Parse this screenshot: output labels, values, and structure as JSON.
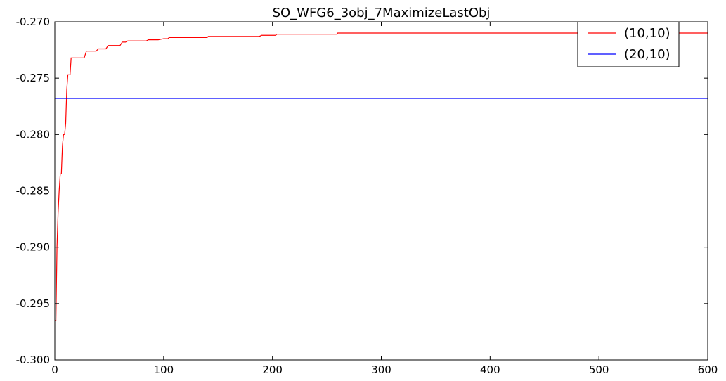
{
  "chart_data": {
    "type": "line",
    "title": "SO_WFG6_3obj_7MaximizeLastObj",
    "xlabel": "",
    "ylabel": "",
    "xlim": [
      0,
      600
    ],
    "ylim": [
      -0.3,
      -0.27
    ],
    "x_ticks": [
      "0",
      "100",
      "200",
      "300",
      "400",
      "500",
      "600"
    ],
    "y_ticks": [
      "-0.270",
      "-0.275",
      "-0.280",
      "-0.285",
      "-0.290",
      "-0.295",
      "-0.300"
    ],
    "grid": false,
    "legend_position": "top-right",
    "series": [
      {
        "name": "(10,10)",
        "color": "#ff0000",
        "points": [
          [
            0,
            -0.2965
          ],
          [
            1,
            -0.2965
          ],
          [
            2,
            -0.29
          ],
          [
            3,
            -0.287
          ],
          [
            4,
            -0.285
          ],
          [
            5,
            -0.2835
          ],
          [
            6,
            -0.2835
          ],
          [
            7,
            -0.281
          ],
          [
            8,
            -0.28
          ],
          [
            9,
            -0.28
          ],
          [
            10,
            -0.279
          ],
          [
            11,
            -0.276
          ],
          [
            12,
            -0.2747
          ],
          [
            13,
            -0.2747
          ],
          [
            14,
            -0.2747
          ],
          [
            15,
            -0.2732
          ],
          [
            20,
            -0.2732
          ],
          [
            27,
            -0.2732
          ],
          [
            29,
            -0.2726
          ],
          [
            38,
            -0.2726
          ],
          [
            40,
            -0.2724
          ],
          [
            47,
            -0.2724
          ],
          [
            49,
            -0.2721
          ],
          [
            60,
            -0.2721
          ],
          [
            62,
            -0.2718
          ],
          [
            65,
            -0.2718
          ],
          [
            67,
            -0.2717
          ],
          [
            84,
            -0.2717
          ],
          [
            86,
            -0.2716
          ],
          [
            95,
            -0.2716
          ],
          [
            100,
            -0.2715
          ],
          [
            104,
            -0.2715
          ],
          [
            105,
            -0.2714
          ],
          [
            140,
            -0.2714
          ],
          [
            141,
            -0.2713
          ],
          [
            188,
            -0.2713
          ],
          [
            190,
            -0.2712
          ],
          [
            203,
            -0.2712
          ],
          [
            204,
            -0.2711
          ],
          [
            259,
            -0.2711
          ],
          [
            260,
            -0.271
          ],
          [
            600,
            -0.271
          ]
        ]
      },
      {
        "name": "(20,10)",
        "color": "#0000ff",
        "points": [
          [
            0,
            -0.2768
          ],
          [
            600,
            -0.2768
          ]
        ]
      }
    ]
  }
}
